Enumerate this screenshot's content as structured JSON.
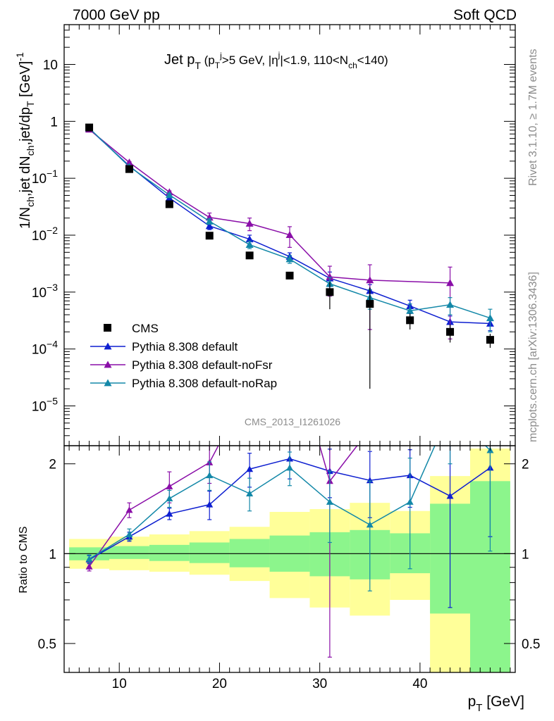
{
  "header": {
    "left": "7000 GeV pp",
    "right": "Soft QCD"
  },
  "side_labels": {
    "rivet": "Rivet 3.1.10, ≥ 1.7M events",
    "mcplots": "mcplots.cern.ch [arXiv:1306.3436]"
  },
  "chart_data": {
    "type": "scatter",
    "title": "Jet p_T (p_T^j>5 GeV, |η^j|<1.9, 110<N_ch<140)",
    "watermark": "CMS_2013_I1261026",
    "xlabel": "p_T [GeV]",
    "ylabel_main": "1/N_ch,jet dN_ch,jet/dp_T [GeV]^-1",
    "ylabel_ratio": "Ratio to CMS",
    "xlim": [
      4.5,
      49.5
    ],
    "ylim_main": [
      2e-06,
      50
    ],
    "ylim_ratio": [
      0.4,
      2.3
    ],
    "log_y_main": true,
    "log_y_ratio": true,
    "x_ticks": [
      10,
      20,
      30,
      40
    ],
    "x_edges": [
      5,
      9,
      13,
      17,
      21,
      25,
      29,
      33,
      37,
      41,
      45,
      49
    ],
    "x": [
      7,
      11,
      15,
      19,
      23,
      27,
      31,
      35,
      39,
      43,
      47
    ],
    "legend_position": "lower-left",
    "data": {
      "name": "CMS",
      "color": "#000000",
      "values": [
        0.78,
        0.145,
        0.035,
        0.0098,
        0.0044,
        0.00195,
        0.001,
        0.00062,
        0.00032,
        0.0002,
        0.000145
      ],
      "errors": [
        0.02,
        0.004,
        0.001,
        0.0003,
        0.00015,
        0.0001,
        0.0005,
        0.0006,
        0.0001,
        7e-05,
        4e-05
      ]
    },
    "band_inner": [
      [
        0.95,
        1.05
      ],
      [
        0.96,
        1.06
      ],
      [
        0.945,
        1.07
      ],
      [
        0.93,
        1.09
      ],
      [
        0.9,
        1.12
      ],
      [
        0.87,
        1.15
      ],
      [
        0.84,
        1.18
      ],
      [
        0.82,
        1.2
      ],
      [
        0.86,
        1.17
      ],
      [
        0.63,
        1.47
      ],
      [
        0.3,
        1.75
      ]
    ],
    "band_outer": [
      [
        0.89,
        1.12
      ],
      [
        0.88,
        1.14
      ],
      [
        0.87,
        1.16
      ],
      [
        0.85,
        1.19
      ],
      [
        0.81,
        1.23
      ],
      [
        0.71,
        1.38
      ],
      [
        0.66,
        1.41
      ],
      [
        0.62,
        1.48
      ],
      [
        0.7,
        1.39
      ],
      [
        0.3,
        1.82
      ],
      [
        0.3,
        2.25
      ]
    ],
    "series": [
      {
        "name": "Pythia 8.308 default",
        "color": "#0e1fd0",
        "values": [
          0.74,
          0.165,
          0.045,
          0.0145,
          0.0085,
          0.0042,
          0.00175,
          0.00105,
          0.00057,
          0.0003,
          0.00028
        ],
        "errors": [
          0.01,
          0.004,
          0.0015,
          0.002,
          0.0015,
          0.0007,
          0.0005,
          0.0003,
          0.00015,
          8e-05,
          7e-05
        ],
        "ratio": [
          0.955,
          1.14,
          1.36,
          1.46,
          1.92,
          2.08,
          1.89,
          1.76,
          1.83,
          1.56,
          1.94
        ],
        "ratio_errors": [
          0.03,
          0.04,
          0.06,
          0.16,
          0.25,
          0.3,
          0.35,
          0.44,
          0.4,
          0.9,
          0.8
        ]
      },
      {
        "name": "Pythia 8.308 default-noFsr",
        "color": "#8a0ea8",
        "values": [
          0.72,
          0.19,
          0.057,
          0.0205,
          0.016,
          0.0101,
          0.00185,
          0.00162,
          0.0,
          0.00145,
          0.0
        ],
        "errors": [
          0.01,
          0.006,
          0.003,
          0.004,
          0.004,
          0.004,
          0.001,
          0.0014,
          0.0,
          0.0013,
          0.0
        ],
        "ratio": [
          0.905,
          1.4,
          1.68,
          2.02,
          0.0,
          0.0,
          1.75,
          0.0,
          0.0,
          0.0,
          0.0
        ],
        "ratio_errors": [
          0.03,
          0.08,
          0.2,
          0.3,
          0.0,
          0.0,
          1.3,
          0.0,
          0.0,
          0.0,
          0.0
        ]
      },
      {
        "name": "Pythia 8.308 default-noRap",
        "color": "#1388a8",
        "values": [
          0.76,
          0.16,
          0.051,
          0.0175,
          0.0068,
          0.0038,
          0.0014,
          0.0008,
          0.00047,
          0.0006,
          0.00035
        ],
        "errors": [
          0.01,
          0.004,
          0.002,
          0.002,
          0.001,
          0.0006,
          0.0004,
          0.0003,
          0.00015,
          0.0002,
          0.00015
        ],
        "ratio": [
          0.96,
          1.16,
          1.53,
          1.83,
          1.59,
          1.94,
          1.49,
          1.25,
          1.49,
          3.0,
          2.22
        ],
        "ratio_errors": [
          0.03,
          0.05,
          0.1,
          0.2,
          0.2,
          0.25,
          0.4,
          0.5,
          0.6,
          1.0,
          1.2
        ]
      }
    ]
  }
}
